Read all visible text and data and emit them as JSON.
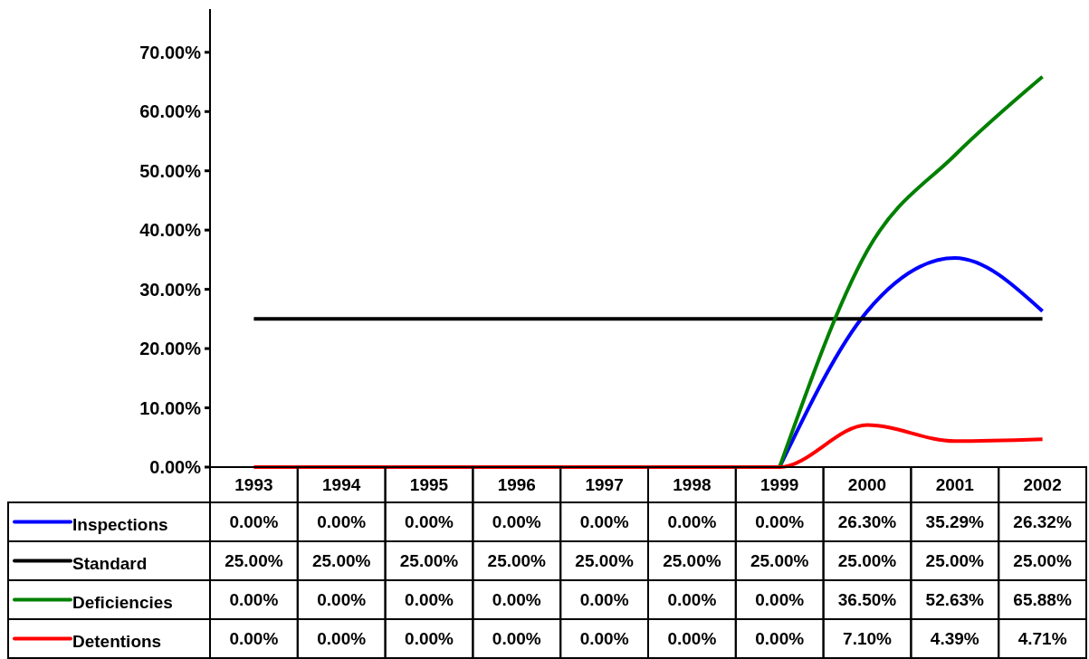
{
  "chart_data": {
    "type": "line",
    "categories": [
      "1993",
      "1994",
      "1995",
      "1996",
      "1997",
      "1998",
      "1999",
      "2000",
      "2001",
      "2002"
    ],
    "ylim": [
      0,
      77.3
    ],
    "yticks": [
      {
        "value": 0,
        "label": "0.00%"
      },
      {
        "value": 10,
        "label": "10.00%"
      },
      {
        "value": 20,
        "label": "20.00%"
      },
      {
        "value": 30,
        "label": "30.00%"
      },
      {
        "value": 40,
        "label": "40.00%"
      },
      {
        "value": 50,
        "label": "50.00%"
      },
      {
        "value": 60,
        "label": "60.00%"
      },
      {
        "value": 70,
        "label": "70.00%"
      }
    ],
    "series": [
      {
        "name": "Inspections",
        "color": "#0000ff",
        "values": [
          null,
          null,
          null,
          null,
          null,
          null,
          0,
          26.3,
          35.29,
          26.32
        ],
        "value_labels": [
          "0.00%",
          "0.00%",
          "0.00%",
          "0.00%",
          "0.00%",
          "0.00%",
          "0.00%",
          "26.30%",
          "35.29%",
          "26.32%"
        ]
      },
      {
        "name": "Standard",
        "color": "#000000",
        "values": [
          25,
          25,
          25,
          25,
          25,
          25,
          25,
          25,
          25,
          25
        ],
        "value_labels": [
          "25.00%",
          "25.00%",
          "25.00%",
          "25.00%",
          "25.00%",
          "25.00%",
          "25.00%",
          "25.00%",
          "25.00%",
          "25.00%"
        ]
      },
      {
        "name": "Deficiencies",
        "color": "#008000",
        "values": [
          null,
          null,
          null,
          null,
          null,
          null,
          0,
          36.5,
          52.63,
          65.88
        ],
        "value_labels": [
          "0.00%",
          "0.00%",
          "0.00%",
          "0.00%",
          "0.00%",
          "0.00%",
          "0.00%",
          "36.50%",
          "52.63%",
          "65.88%"
        ]
      },
      {
        "name": "Detentions",
        "color": "#ff0000",
        "values": [
          0,
          0,
          0,
          0,
          0,
          0,
          0,
          7.1,
          4.39,
          4.71
        ],
        "value_labels": [
          "0.00%",
          "0.00%",
          "0.00%",
          "0.00%",
          "0.00%",
          "0.00%",
          "0.00%",
          "7.10%",
          "4.39%",
          "4.71%"
        ]
      }
    ],
    "legend": "bottom",
    "grid": false,
    "marker": "none",
    "line_style": "solid"
  }
}
